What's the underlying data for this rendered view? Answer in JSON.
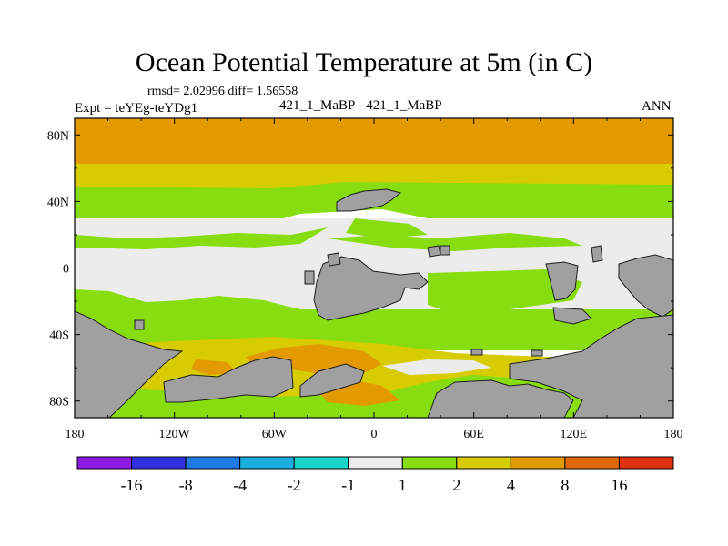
{
  "chart_data": {
    "type": "heatmap",
    "title": "Ocean Potential Temperature at 5m (in C)",
    "stats_line": "rmsd= 2.02996 diff= 1.56558",
    "left_label": "Expt = teYEg-teYDg1",
    "center_label": "421_1_MaBP - 421_1_MaBP",
    "right_label": "ANN",
    "xlabel": "",
    "ylabel": "",
    "xlim": [
      -180,
      180
    ],
    "ylim": [
      -90,
      90
    ],
    "x_ticks": [
      {
        "value": -180,
        "label": "180"
      },
      {
        "value": -120,
        "label": "120W"
      },
      {
        "value": -60,
        "label": "60W"
      },
      {
        "value": 0,
        "label": "0"
      },
      {
        "value": 60,
        "label": "60E"
      },
      {
        "value": 120,
        "label": "120E"
      },
      {
        "value": 180,
        "label": "180"
      }
    ],
    "y_ticks": [
      {
        "value": 80,
        "label": "80N"
      },
      {
        "value": 40,
        "label": "40N"
      },
      {
        "value": 0,
        "label": "0"
      },
      {
        "value": -40,
        "label": "40S"
      },
      {
        "value": -80,
        "label": "80S"
      }
    ],
    "colorbar": {
      "levels": [
        "-16",
        "-8",
        "-4",
        "-2",
        "-1",
        "1",
        "2",
        "4",
        "8",
        "16"
      ],
      "colors": [
        "#8e1ae6",
        "#3030e0",
        "#1f7ae6",
        "#1aaee0",
        "#18d3c8",
        "#ececec",
        "#88dd11",
        "#d6cc00",
        "#e29a00",
        "#e2680e",
        "#e03210"
      ]
    },
    "land_color": "#a0a0a0",
    "lat_bands": [
      {
        "lat_range": [
          63,
          90
        ],
        "diff_class": "4 to 8",
        "color": "#e29a00"
      },
      {
        "lat_range": [
          40,
          63
        ],
        "diff_class": "2 to 4",
        "color": "#d6cc00"
      },
      {
        "lat_range": [
          -30,
          40
        ],
        "diff_class": "-1 to 1",
        "color": "#ececec"
      },
      {
        "lat_range": [
          -50,
          -30
        ],
        "diff_class": "1 to 2",
        "color": "#88dd11"
      },
      {
        "lat_range": [
          -80,
          -50
        ],
        "diff_class": "2 to 8 (patches)",
        "color": "#d6cc00"
      }
    ]
  }
}
